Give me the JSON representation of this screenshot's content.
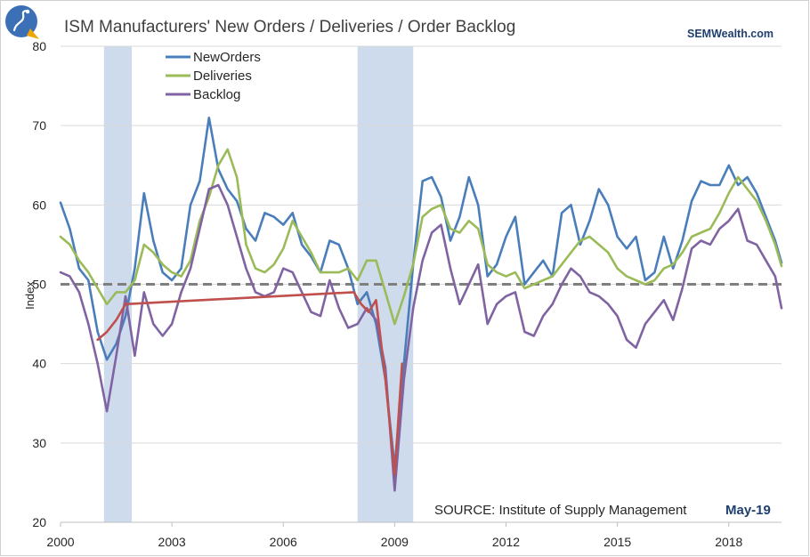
{
  "title": "ISM Manufacturers' New Orders / Deliveries / Order Backlog",
  "brand": "SEMWealth.com",
  "source_label": "SOURCE:  Institute of Supply Management",
  "source_date": "May-19",
  "chart_data": {
    "type": "line",
    "xlabel": "",
    "ylabel": "Index",
    "xlim": [
      2000.0,
      2019.42
    ],
    "ylim": [
      20,
      80
    ],
    "x_ticks": [
      "2000",
      "2003",
      "2006",
      "2009",
      "2012",
      "2015",
      "2018"
    ],
    "y_ticks": [
      20,
      30,
      40,
      50,
      60,
      70,
      80
    ],
    "grid": "horizontal",
    "legend": "top-left",
    "reference_line": {
      "y": 50,
      "style": "dashed",
      "color": "#7f7f7f"
    },
    "recessions": [
      [
        2001.17,
        2001.92
      ],
      [
        2008.0,
        2009.5
      ]
    ],
    "series": [
      {
        "name": "NewOrders",
        "color": "#4a7ebb",
        "x": [
          2000.0,
          2000.25,
          2000.5,
          2000.75,
          2001.0,
          2001.25,
          2001.5,
          2001.75,
          2002.0,
          2002.25,
          2002.5,
          2002.75,
          2003.0,
          2003.25,
          2003.5,
          2003.75,
          2004.0,
          2004.25,
          2004.5,
          2004.75,
          2005.0,
          2005.25,
          2005.5,
          2005.75,
          2006.0,
          2006.25,
          2006.5,
          2006.75,
          2007.0,
          2007.25,
          2007.5,
          2007.75,
          2008.0,
          2008.25,
          2008.5,
          2008.75,
          2009.0,
          2009.25,
          2009.5,
          2009.75,
          2010.0,
          2010.25,
          2010.5,
          2010.75,
          2011.0,
          2011.25,
          2011.5,
          2011.75,
          2012.0,
          2012.25,
          2012.5,
          2012.75,
          2013.0,
          2013.25,
          2013.5,
          2013.75,
          2014.0,
          2014.25,
          2014.5,
          2014.75,
          2015.0,
          2015.25,
          2015.5,
          2015.75,
          2016.0,
          2016.25,
          2016.5,
          2016.75,
          2017.0,
          2017.25,
          2017.5,
          2017.75,
          2018.0,
          2018.25,
          2018.5,
          2018.75,
          2019.0,
          2019.25,
          2019.42
        ],
        "values": [
          60.3,
          57.0,
          52.0,
          50.5,
          44.0,
          40.5,
          42.5,
          46.0,
          52.0,
          61.5,
          55.5,
          51.5,
          50.5,
          52.0,
          60.0,
          63.0,
          71.0,
          64.5,
          62.0,
          60.5,
          57.0,
          55.5,
          59.0,
          58.5,
          57.5,
          59.0,
          55.0,
          53.5,
          51.5,
          55.5,
          55.0,
          52.0,
          47.5,
          49.0,
          45.0,
          38.0,
          27.0,
          40.0,
          52.5,
          63.0,
          63.5,
          61.0,
          55.5,
          58.5,
          63.5,
          60.0,
          51.0,
          52.5,
          56.0,
          58.5,
          50.0,
          51.5,
          53.0,
          51.0,
          59.0,
          60.0,
          55.0,
          58.0,
          62.0,
          60.0,
          56.0,
          54.5,
          56.0,
          50.5,
          51.5,
          56.0,
          52.0,
          55.5,
          60.5,
          63.0,
          62.5,
          62.5,
          65.0,
          62.5,
          63.5,
          61.5,
          58.5,
          55.5,
          52.7
        ]
      },
      {
        "name": "Deliveries",
        "color": "#9bbb59",
        "x": [
          2000.0,
          2000.25,
          2000.5,
          2000.75,
          2001.0,
          2001.25,
          2001.5,
          2001.75,
          2002.0,
          2002.25,
          2002.5,
          2002.75,
          2003.0,
          2003.25,
          2003.5,
          2003.75,
          2004.0,
          2004.25,
          2004.5,
          2004.75,
          2005.0,
          2005.25,
          2005.5,
          2005.75,
          2006.0,
          2006.25,
          2006.5,
          2006.75,
          2007.0,
          2007.25,
          2007.5,
          2007.75,
          2008.0,
          2008.25,
          2008.5,
          2008.75,
          2009.0,
          2009.25,
          2009.5,
          2009.75,
          2010.0,
          2010.25,
          2010.5,
          2010.75,
          2011.0,
          2011.25,
          2011.5,
          2011.75,
          2012.0,
          2012.25,
          2012.5,
          2012.75,
          2013.0,
          2013.25,
          2013.5,
          2013.75,
          2014.0,
          2014.25,
          2014.5,
          2014.75,
          2015.0,
          2015.25,
          2015.5,
          2015.75,
          2016.0,
          2016.25,
          2016.5,
          2016.75,
          2017.0,
          2017.25,
          2017.5,
          2017.75,
          2018.0,
          2018.25,
          2018.5,
          2018.75,
          2019.0,
          2019.25,
          2019.42
        ],
        "values": [
          56.0,
          55.0,
          53.0,
          51.5,
          49.5,
          47.5,
          49.0,
          49.0,
          50.5,
          55.0,
          54.0,
          52.5,
          51.5,
          51.0,
          53.0,
          58.0,
          61.0,
          65.0,
          67.0,
          63.5,
          55.0,
          52.0,
          51.5,
          52.5,
          54.5,
          58.0,
          56.0,
          54.0,
          51.5,
          51.5,
          51.5,
          52.0,
          50.5,
          53.0,
          53.0,
          49.0,
          45.0,
          48.5,
          52.5,
          58.5,
          59.5,
          60.0,
          57.0,
          56.5,
          58.0,
          57.0,
          52.5,
          51.5,
          51.0,
          51.5,
          49.5,
          50.0,
          50.5,
          51.0,
          52.5,
          54.0,
          55.5,
          56.0,
          55.0,
          54.0,
          52.0,
          51.0,
          50.5,
          50.0,
          50.5,
          52.0,
          52.5,
          54.0,
          56.0,
          56.5,
          57.0,
          59.0,
          61.5,
          63.5,
          62.0,
          60.5,
          58.0,
          55.0,
          52.3
        ]
      },
      {
        "name": "Backlog",
        "color": "#8064a2",
        "x": [
          2000.0,
          2000.25,
          2000.5,
          2000.75,
          2001.0,
          2001.25,
          2001.5,
          2001.75,
          2002.0,
          2002.25,
          2002.5,
          2002.75,
          2003.0,
          2003.25,
          2003.5,
          2003.75,
          2004.0,
          2004.25,
          2004.5,
          2004.75,
          2005.0,
          2005.25,
          2005.5,
          2005.75,
          2006.0,
          2006.25,
          2006.5,
          2006.75,
          2007.0,
          2007.25,
          2007.5,
          2007.75,
          2008.0,
          2008.25,
          2008.5,
          2008.75,
          2009.0,
          2009.25,
          2009.5,
          2009.75,
          2010.0,
          2010.25,
          2010.5,
          2010.75,
          2011.0,
          2011.25,
          2011.5,
          2011.75,
          2012.0,
          2012.25,
          2012.5,
          2012.75,
          2013.0,
          2013.25,
          2013.5,
          2013.75,
          2014.0,
          2014.25,
          2014.5,
          2014.75,
          2015.0,
          2015.25,
          2015.5,
          2015.75,
          2016.0,
          2016.25,
          2016.5,
          2016.75,
          2017.0,
          2017.25,
          2017.5,
          2017.75,
          2018.0,
          2018.25,
          2018.5,
          2018.75,
          2019.0,
          2019.25,
          2019.42
        ],
        "values": [
          51.5,
          51.0,
          49.0,
          45.0,
          40.0,
          34.0,
          41.0,
          48.5,
          41.0,
          49.0,
          45.0,
          43.5,
          45.0,
          49.0,
          52.0,
          57.0,
          62.0,
          62.5,
          60.0,
          56.0,
          52.0,
          49.0,
          48.5,
          49.0,
          52.0,
          51.5,
          49.0,
          46.5,
          46.0,
          50.5,
          47.0,
          44.5,
          45.0,
          47.0,
          45.5,
          39.5,
          24.0,
          38.0,
          47.0,
          53.0,
          56.5,
          57.5,
          52.0,
          47.5,
          50.0,
          52.5,
          45.0,
          47.5,
          48.5,
          49.0,
          44.0,
          43.5,
          46.0,
          47.5,
          50.0,
          52.0,
          51.0,
          49.0,
          48.5,
          47.5,
          46.0,
          43.0,
          42.0,
          45.0,
          46.5,
          48.0,
          45.5,
          49.5,
          54.5,
          55.5,
          55.0,
          57.0,
          58.0,
          59.5,
          55.5,
          55.0,
          53.0,
          51.0,
          47.0
        ]
      },
      {
        "name": "",
        "color": "#c0504d",
        "x": [
          2001.0,
          2001.25,
          2001.5,
          2001.75,
          2007.9,
          2008.1,
          2008.3,
          2008.5,
          2008.75,
          2009.0,
          2009.2
        ],
        "values": [
          43.0,
          44.0,
          45.5,
          47.5,
          49.0,
          47.5,
          46.5,
          48.0,
          38.0,
          26.0,
          40.0
        ]
      }
    ]
  }
}
